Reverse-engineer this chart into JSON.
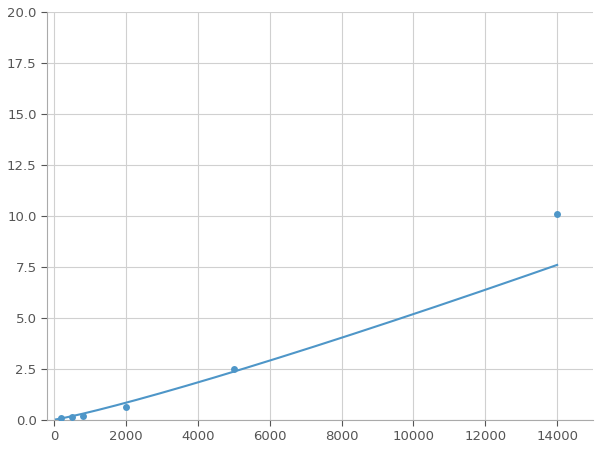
{
  "x_points": [
    200,
    500,
    800,
    2000,
    5000,
    14000
  ],
  "y_points": [
    0.1,
    0.15,
    0.2,
    0.6,
    2.5,
    10.1
  ],
  "line_color": "#4e96c8",
  "marker_color": "#4e96c8",
  "marker_size": 5,
  "linewidth": 1.5,
  "xlim": [
    -200,
    15000
  ],
  "ylim": [
    0,
    20
  ],
  "xticks": [
    0,
    2000,
    4000,
    6000,
    8000,
    10000,
    12000,
    14000
  ],
  "yticks": [
    0.0,
    2.5,
    5.0,
    7.5,
    10.0,
    12.5,
    15.0,
    17.5,
    20.0
  ],
  "grid_color": "#d0d0d0",
  "background_color": "#ffffff",
  "figure_facecolor": "#ffffff",
  "tick_fontsize": 9.5
}
